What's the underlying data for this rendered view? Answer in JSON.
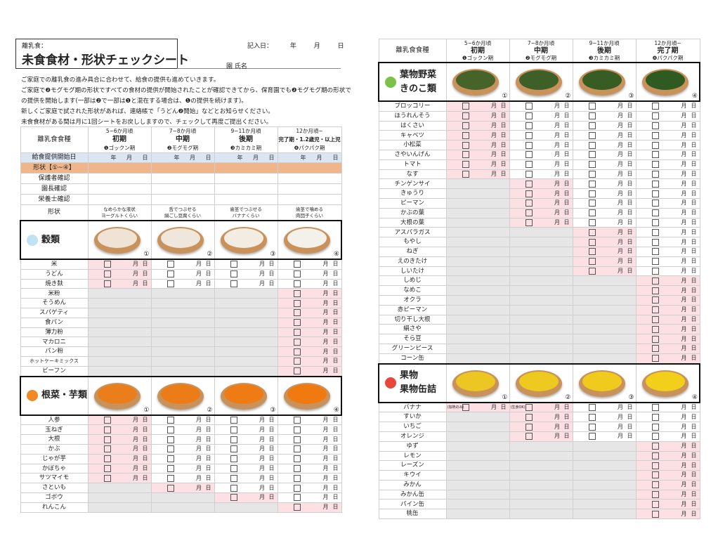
{
  "title": {
    "sub": "離乳食：",
    "main": "未食食材・形状チェックシート"
  },
  "date": {
    "label": "記入日：",
    "y": "年",
    "m": "月",
    "d": "日"
  },
  "name_label": "園  氏名",
  "intro": [
    "ご家庭での離乳食の進み具合に合わせて、給食の提供も進めていきます。",
    "ご家庭で❷モグモグ期の形状ですべての食材の提供が開始されたことが確認できてから、保育園でも❷モグモグ期の形状で",
    "の提供を開始します(一部は❷で一部は❶と混在する場合は、❶の提供を続けます)。",
    "新しくご家庭で試された形状があれば、連絡帳で「うどん❷開始」などとお知らせください。",
    "未食食材がある間は月に1回シートをお戻ししますので、チェックして再度ご提出ください。"
  ],
  "header_label": "離乳食食種",
  "stages": [
    {
      "age": "5~6か月頃",
      "name": "初期",
      "name_right": "初期",
      "phase": "❶ゴックン期",
      "shape": [
        "なめらかな液状",
        "ヨーグルトくらい"
      ]
    },
    {
      "age": "7~8か月頃",
      "name": "中期",
      "name_right": "中期",
      "phase": "❷モグモグ期",
      "shape": [
        "舌でつぶせる",
        "絹ごし豆腐くらい"
      ]
    },
    {
      "age": "9~11か月頃",
      "name": "後期",
      "name_right": "後期",
      "phase": "❸カミカミ期",
      "shape": [
        "歯茎でつぶせる",
        "バナナくらい"
      ]
    },
    {
      "age": "12か月頃~",
      "name": "完了期・1.2歳児・以上児",
      "name_right": "完了期",
      "phase": "❹パクパク期",
      "shape": [
        "歯茎で噛める",
        "肉団子くらい"
      ]
    }
  ],
  "rows": {
    "start_date": "給食提供開始日",
    "shape_range": "形状【①~④】",
    "parent": "保護者確認",
    "director": "園長確認",
    "nutritionist": "栄養士確認",
    "shape": "形状"
  },
  "ymd": {
    "y": "年",
    "m": "月",
    "d": "日"
  },
  "nums": [
    "①",
    "②",
    "③",
    "④"
  ],
  "colors": {
    "pink": "#fde0e3",
    "gray": "#e6e6e6",
    "blue": "#dce6f2",
    "orange": "#efb68c"
  },
  "left_sections": [
    {
      "name": "穀類",
      "icon": "rice-bowl-icon",
      "icon_color": "#bfe3f5",
      "food_color": "#f4f1ea",
      "items": [
        [
          "米",
          1
        ],
        [
          "うどん",
          1
        ],
        [
          "焼き麸",
          1
        ],
        [
          "米粉",
          4
        ],
        [
          "そうめん",
          4
        ],
        [
          "スパゲティ",
          4
        ],
        [
          "食パン",
          4
        ],
        [
          "薄力粉",
          4
        ],
        [
          "マカロニ",
          4
        ],
        [
          "パン粉",
          4
        ],
        [
          "ホットケーキミックス",
          4
        ],
        [
          "ビーフン",
          4
        ]
      ]
    },
    {
      "name": "根菜・芋類",
      "icon": "carrot-icon",
      "icon_color": "#f08a24",
      "food_color": "#f07a10",
      "items": [
        [
          "人参",
          1
        ],
        [
          "玉ねぎ",
          1
        ],
        [
          "大根",
          1
        ],
        [
          "かぶ",
          1
        ],
        [
          "じゃが芋",
          1
        ],
        [
          "かぼちゃ",
          1
        ],
        [
          "サツマイモ",
          1
        ],
        [
          "さといも",
          2
        ],
        [
          "ゴボウ",
          3
        ],
        [
          "れんこん",
          4
        ]
      ]
    }
  ],
  "right_sections": [
    {
      "name": "葉物野菜\nきのこ類",
      "icon": "leaf-icon",
      "icon_color": "#7cc24a",
      "food_color": "#2f5a22",
      "items": [
        [
          "ブロッコリー",
          1
        ],
        [
          "ほうれんそう",
          1
        ],
        [
          "はくさい",
          1
        ],
        [
          "キャベツ",
          1
        ],
        [
          "小松菜",
          1
        ],
        [
          "さやいんげん",
          1
        ],
        [
          "トマト",
          1
        ],
        [
          "なす",
          1
        ],
        [
          "チンゲンサイ",
          2
        ],
        [
          "きゅうり",
          2
        ],
        [
          "ピーマン",
          2
        ],
        [
          "かぶの葉",
          2
        ],
        [
          "大根の葉",
          2
        ],
        [
          "アスパラガス",
          3
        ],
        [
          "もやし",
          3
        ],
        [
          "ねぎ",
          3
        ],
        [
          "えのきたけ",
          3
        ],
        [
          "しいたけ",
          3
        ],
        [
          "しめじ",
          4
        ],
        [
          "なめこ",
          4
        ],
        [
          "オクラ",
          4
        ],
        [
          "赤ピーマン",
          4
        ],
        [
          "切り干し大根",
          4
        ],
        [
          "絹さや",
          4
        ],
        [
          "そら豆",
          4
        ],
        [
          "グリーンピース",
          4
        ],
        [
          "コーン缶",
          4
        ]
      ]
    },
    {
      "name": "果物\n果物缶詰",
      "icon": "watermelon-icon",
      "icon_color": "#e8473a",
      "food_color": "#f2cf1a",
      "items": [
        [
          "バナナ",
          1,
          [
            "(加熱のみ)",
            "(生食OK)"
          ]
        ],
        [
          "すいか",
          2
        ],
        [
          "いちご",
          2
        ],
        [
          "オレンジ",
          2
        ],
        [
          "ゆず",
          4
        ],
        [
          "レモン",
          4
        ],
        [
          "レーズン",
          4
        ],
        [
          "キウイ",
          4
        ],
        [
          "みかん",
          4
        ],
        [
          "みかん缶",
          4
        ],
        [
          "パイン缶",
          4
        ],
        [
          "桃缶",
          4
        ]
      ]
    }
  ]
}
